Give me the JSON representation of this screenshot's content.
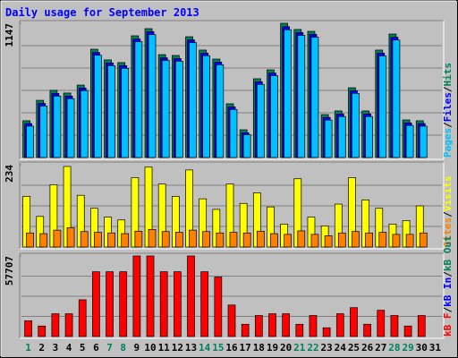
{
  "title": "Daily usage for September 2013",
  "legend_separator": "/",
  "x_axis": {
    "categories": [
      "1",
      "2",
      "3",
      "4",
      "5",
      "6",
      "7",
      "8",
      "9",
      "10",
      "11",
      "12",
      "13",
      "14",
      "15",
      "16",
      "17",
      "18",
      "19",
      "20",
      "21",
      "22",
      "23",
      "24",
      "25",
      "26",
      "27",
      "28",
      "29",
      "30",
      "31"
    ],
    "colors": [
      "#00805c",
      "#000000",
      "#000000",
      "#000000",
      "#000000",
      "#000000",
      "#00805c",
      "#00805c",
      "#000000",
      "#000000",
      "#000000",
      "#000000",
      "#000000",
      "#00805c",
      "#00805c",
      "#000000",
      "#000000",
      "#000000",
      "#000000",
      "#000000",
      "#00805c",
      "#00805c",
      "#000000",
      "#000000",
      "#000000",
      "#000000",
      "#000000",
      "#00805c",
      "#00805c",
      "#000000",
      "#000000"
    ]
  },
  "chart_data": [
    {
      "type": "bar",
      "ylim": [
        0,
        1147
      ],
      "yticks": [
        1147
      ],
      "grid_divisions": 6,
      "series": [
        {
          "name": "Hits",
          "color": "#00805c",
          "values": [
            314,
            489,
            574,
            551,
            619,
            925,
            834,
            811,
            1040,
            1101,
            879,
            872,
            1032,
            918,
            841,
            459,
            237,
            673,
            749,
            1147,
            1094,
            1078,
            367,
            398,
            596,
            398,
            918,
            1055,
            321,
            314,
            null
          ]
        },
        {
          "name": "Files",
          "color": "#0000ff",
          "values": [
            290,
            462,
            548,
            525,
            593,
            898,
            808,
            785,
            1012,
            1075,
            852,
            846,
            1005,
            892,
            815,
            433,
            212,
            647,
            722,
            1118,
            1068,
            1052,
            342,
            372,
            570,
            372,
            892,
            1028,
            296,
            290,
            null
          ]
        },
        {
          "name": "Pages",
          "color": "#00c0ff",
          "values": [
            268,
            440,
            525,
            503,
            572,
            874,
            785,
            762,
            990,
            1050,
            830,
            823,
            982,
            870,
            792,
            410,
            195,
            625,
            700,
            1092,
            1044,
            1028,
            320,
            350,
            548,
            350,
            868,
            1004,
            274,
            268,
            null
          ]
        }
      ]
    },
    {
      "type": "bar",
      "ylim": [
        0,
        234
      ],
      "yticks": [
        234
      ],
      "grid_divisions": 4,
      "series": [
        {
          "name": "Visits",
          "color": "#ffff00",
          "values": [
            144,
            87,
            177,
            229,
            147,
            110,
            85,
            77,
            197,
            227,
            179,
            144,
            219,
            137,
            107,
            179,
            124,
            154,
            114,
            65,
            194,
            85,
            60,
            122,
            197,
            134,
            110,
            65,
            75,
            117,
            null
          ]
        },
        {
          "name": "Sites",
          "color": "#ff8000",
          "values": [
            40,
            38,
            48,
            55,
            44,
            42,
            40,
            38,
            45,
            50,
            44,
            42,
            48,
            44,
            40,
            42,
            40,
            45,
            38,
            36,
            46,
            36,
            32,
            40,
            44,
            40,
            42,
            36,
            36,
            40,
            null
          ]
        }
      ]
    },
    {
      "type": "bar",
      "ylim": [
        0,
        57707
      ],
      "yticks": [
        57707
      ],
      "grid_divisions": 4,
      "series": [
        {
          "name": "kB F",
          "color": "#ff0000",
          "values": [
            11290,
            7525,
            16300,
            16300,
            26330,
            46400,
            46400,
            46400,
            57707,
            57707,
            46400,
            46400,
            57707,
            46400,
            42640,
            22570,
            8780,
            15050,
            16300,
            16300,
            8780,
            15050,
            6270,
            16300,
            20690,
            8780,
            18810,
            15050,
            7525,
            15050,
            null
          ]
        }
      ],
      "other_labels": [
        {
          "name": "kB In",
          "color": "#0000ff"
        },
        {
          "name": "kB Out",
          "color": "#00805c"
        }
      ]
    }
  ]
}
